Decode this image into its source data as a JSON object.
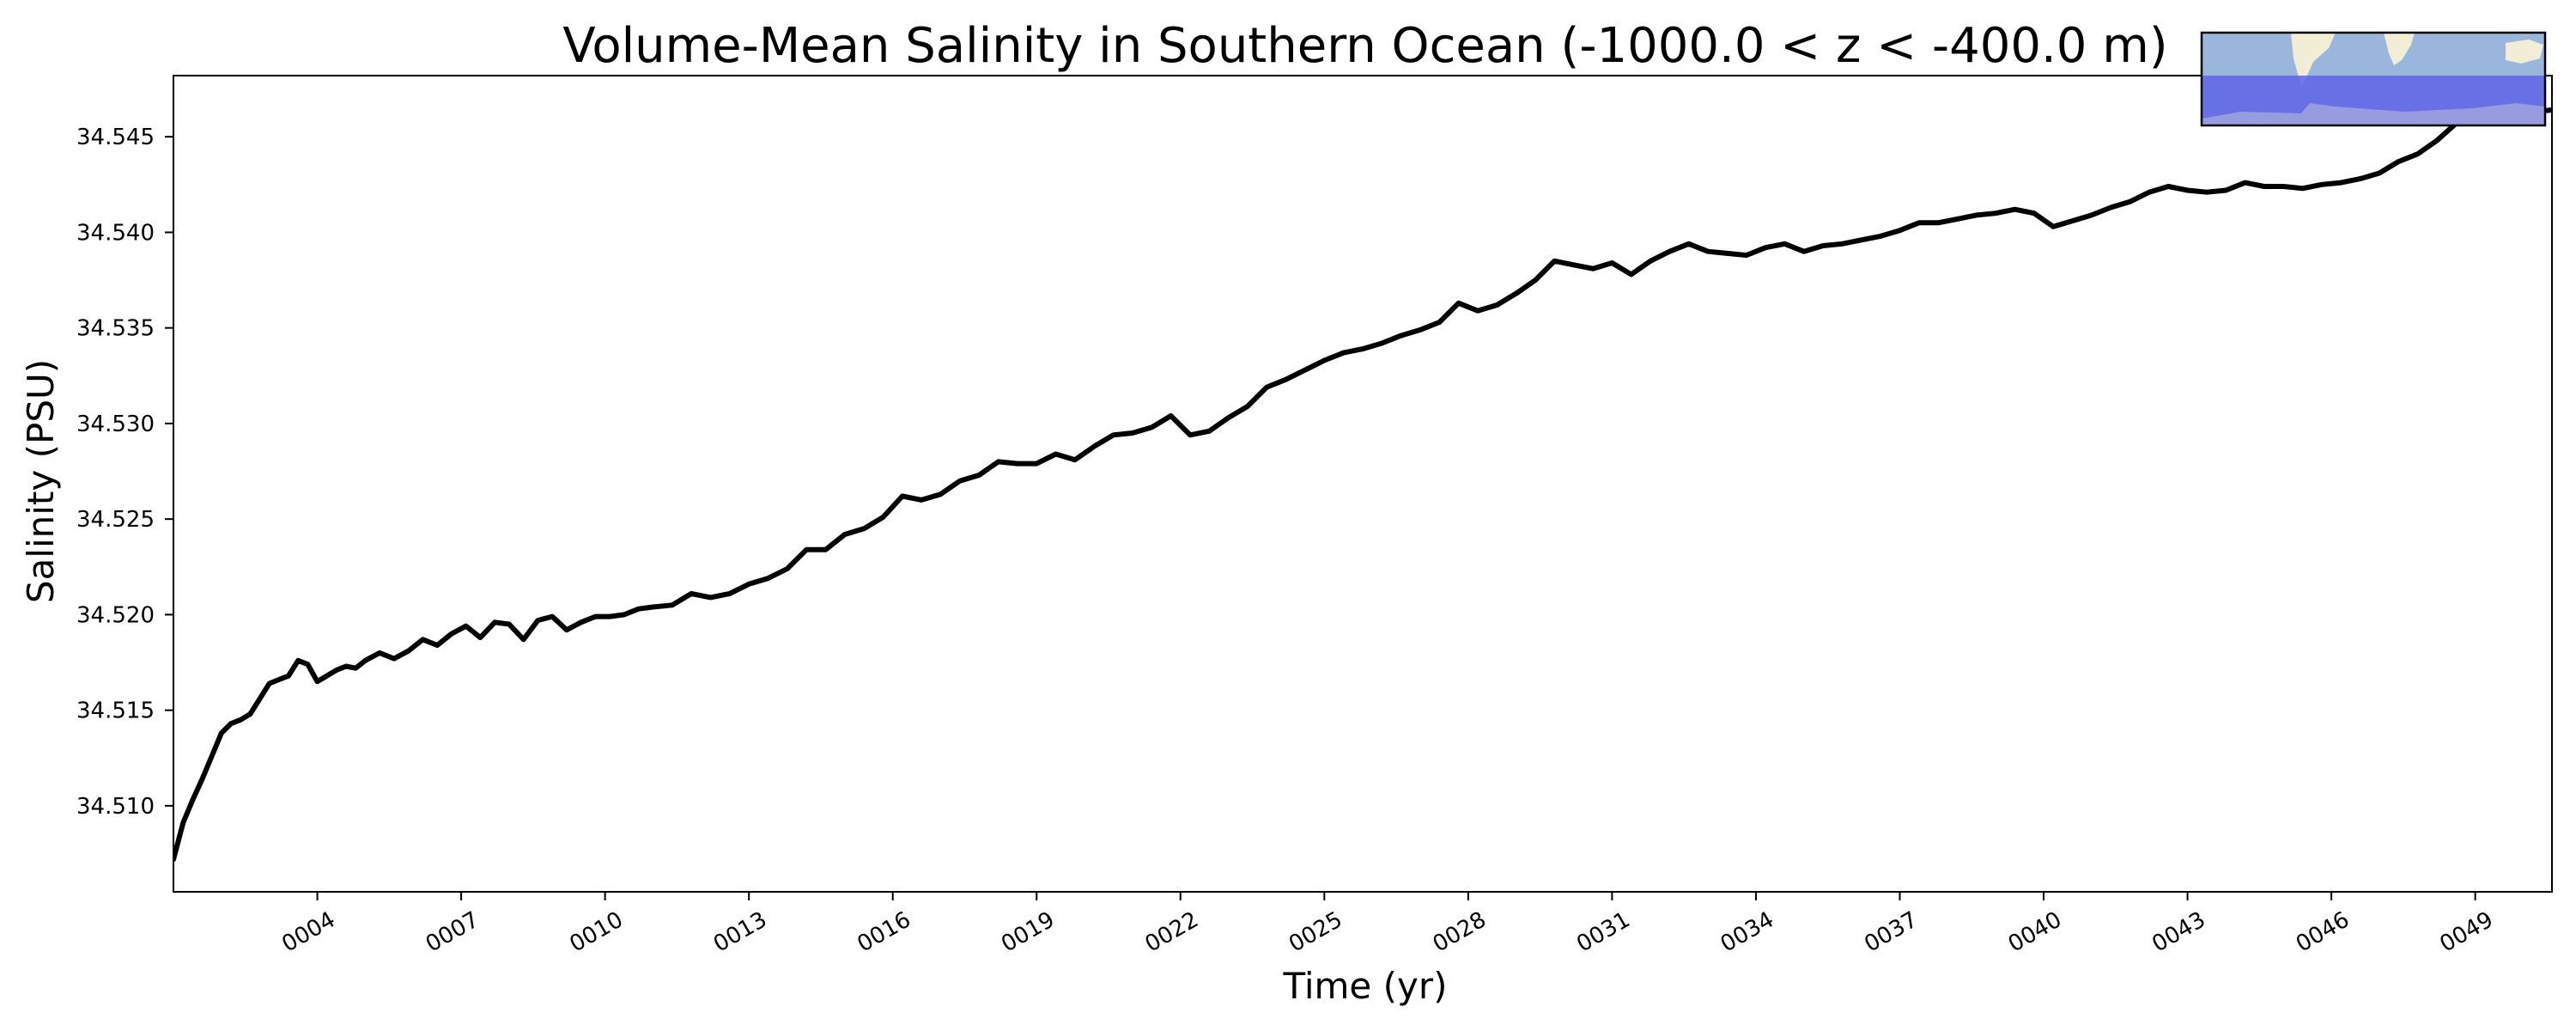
{
  "chart_data": {
    "type": "line",
    "title": "Volume-Mean Salinity in Southern Ocean (-1000.0 < z < -400.0 m)",
    "xlabel": "Time (yr)",
    "ylabel": "Salinity (PSU)",
    "xlim": [
      1.0,
      50.6
    ],
    "ylim": [
      34.5055,
      34.5482
    ],
    "x_ticks": [
      4,
      7,
      10,
      13,
      16,
      19,
      22,
      25,
      28,
      31,
      34,
      37,
      40,
      43,
      46,
      49
    ],
    "x_tick_labels": [
      "0004",
      "0007",
      "0010",
      "0013",
      "0016",
      "0019",
      "0022",
      "0025",
      "0028",
      "0031",
      "0034",
      "0037",
      "0040",
      "0043",
      "0046",
      "0049"
    ],
    "y_ticks": [
      34.51,
      34.515,
      34.52,
      34.525,
      34.53,
      34.535,
      34.54,
      34.545
    ],
    "y_tick_labels": [
      "34.510",
      "34.515",
      "34.520",
      "34.525",
      "34.530",
      "34.535",
      "34.540",
      "34.545"
    ],
    "grid": false,
    "series": [
      {
        "color": "#000000",
        "x": [
          1.0,
          1.2,
          1.4,
          1.6,
          1.8,
          2.0,
          2.2,
          2.4,
          2.6,
          2.8,
          3.0,
          3.2,
          3.4,
          3.6,
          3.8,
          4.0,
          4.2,
          4.4,
          4.6,
          4.8,
          5.0,
          5.3,
          5.6,
          5.9,
          6.2,
          6.5,
          6.8,
          7.1,
          7.4,
          7.7,
          8.0,
          8.3,
          8.6,
          8.9,
          9.2,
          9.5,
          9.8,
          10.1,
          10.4,
          10.7,
          11.0,
          11.4,
          11.8,
          12.2,
          12.6,
          13.0,
          13.4,
          13.8,
          14.2,
          14.6,
          15.0,
          15.4,
          15.8,
          16.2,
          16.6,
          17.0,
          17.4,
          17.8,
          18.2,
          18.6,
          19.0,
          19.4,
          19.8,
          20.2,
          20.6,
          21.0,
          21.4,
          21.8,
          22.2,
          22.6,
          23.0,
          23.4,
          23.8,
          24.2,
          24.6,
          25.0,
          25.4,
          25.8,
          26.2,
          26.6,
          27.0,
          27.4,
          27.8,
          28.2,
          28.6,
          29.0,
          29.4,
          29.8,
          30.2,
          30.6,
          31.0,
          31.4,
          31.8,
          32.2,
          32.6,
          33.0,
          33.4,
          33.8,
          34.2,
          34.6,
          35.0,
          35.4,
          35.8,
          36.2,
          36.6,
          37.0,
          37.4,
          37.8,
          38.2,
          38.6,
          39.0,
          39.4,
          39.8,
          40.2,
          40.6,
          41.0,
          41.4,
          41.8,
          42.2,
          42.6,
          43.0,
          43.4,
          43.8,
          44.2,
          44.6,
          45.0,
          45.4,
          45.8,
          46.2,
          46.6,
          47.0,
          47.4,
          47.8,
          48.2,
          48.6,
          49.0,
          49.4,
          49.8,
          50.2,
          50.6
        ],
        "values": [
          34.5072,
          34.5091,
          34.5103,
          34.5114,
          34.5126,
          34.5138,
          34.5143,
          34.5145,
          34.5148,
          34.5156,
          34.5164,
          34.5166,
          34.5168,
          34.5176,
          34.5174,
          34.5165,
          34.5168,
          34.5171,
          34.5173,
          34.5172,
          34.5176,
          34.518,
          34.5177,
          34.5181,
          34.5187,
          34.5184,
          34.519,
          34.5194,
          34.5188,
          34.5196,
          34.5195,
          34.5187,
          34.5197,
          34.5199,
          34.5192,
          34.5196,
          34.5199,
          34.5199,
          34.52,
          34.5203,
          34.5204,
          34.5205,
          34.5211,
          34.5209,
          34.5211,
          34.5216,
          34.5219,
          34.5224,
          34.5234,
          34.5234,
          34.5242,
          34.5245,
          34.5251,
          34.5262,
          34.526,
          34.5263,
          34.527,
          34.5273,
          34.528,
          34.5279,
          34.5279,
          34.5284,
          34.5281,
          34.5288,
          34.5294,
          34.5295,
          34.5298,
          34.5304,
          34.5294,
          34.5296,
          34.5303,
          34.5309,
          34.5319,
          34.5323,
          34.5328,
          34.5333,
          34.5337,
          34.5339,
          34.5342,
          34.5346,
          34.5349,
          34.5353,
          34.5363,
          34.5359,
          34.5362,
          34.5368,
          34.5375,
          34.5385,
          34.5383,
          34.5381,
          34.5384,
          34.5378,
          34.5385,
          34.539,
          34.5394,
          34.539,
          34.5389,
          34.5388,
          34.5392,
          34.5394,
          34.539,
          34.5393,
          34.5394,
          34.5396,
          34.5398,
          34.5401,
          34.5405,
          34.5405,
          34.5407,
          34.5409,
          34.541,
          34.5412,
          34.541,
          34.5403,
          34.5406,
          34.5409,
          34.5413,
          34.5416,
          34.5421,
          34.5424,
          34.5422,
          34.5421,
          34.5422,
          34.5426,
          34.5424,
          34.5424,
          34.5423,
          34.5425,
          34.5426,
          34.5428,
          34.5431,
          34.5437,
          34.5441,
          34.5448,
          34.5457,
          34.546,
          34.5461,
          34.5462,
          34.5463,
          34.5464
        ]
      }
    ]
  },
  "inset_map": {
    "land_color": "#f2eed6",
    "ocean_color": "#9bb6dc",
    "region_color": "#5e64e6"
  }
}
